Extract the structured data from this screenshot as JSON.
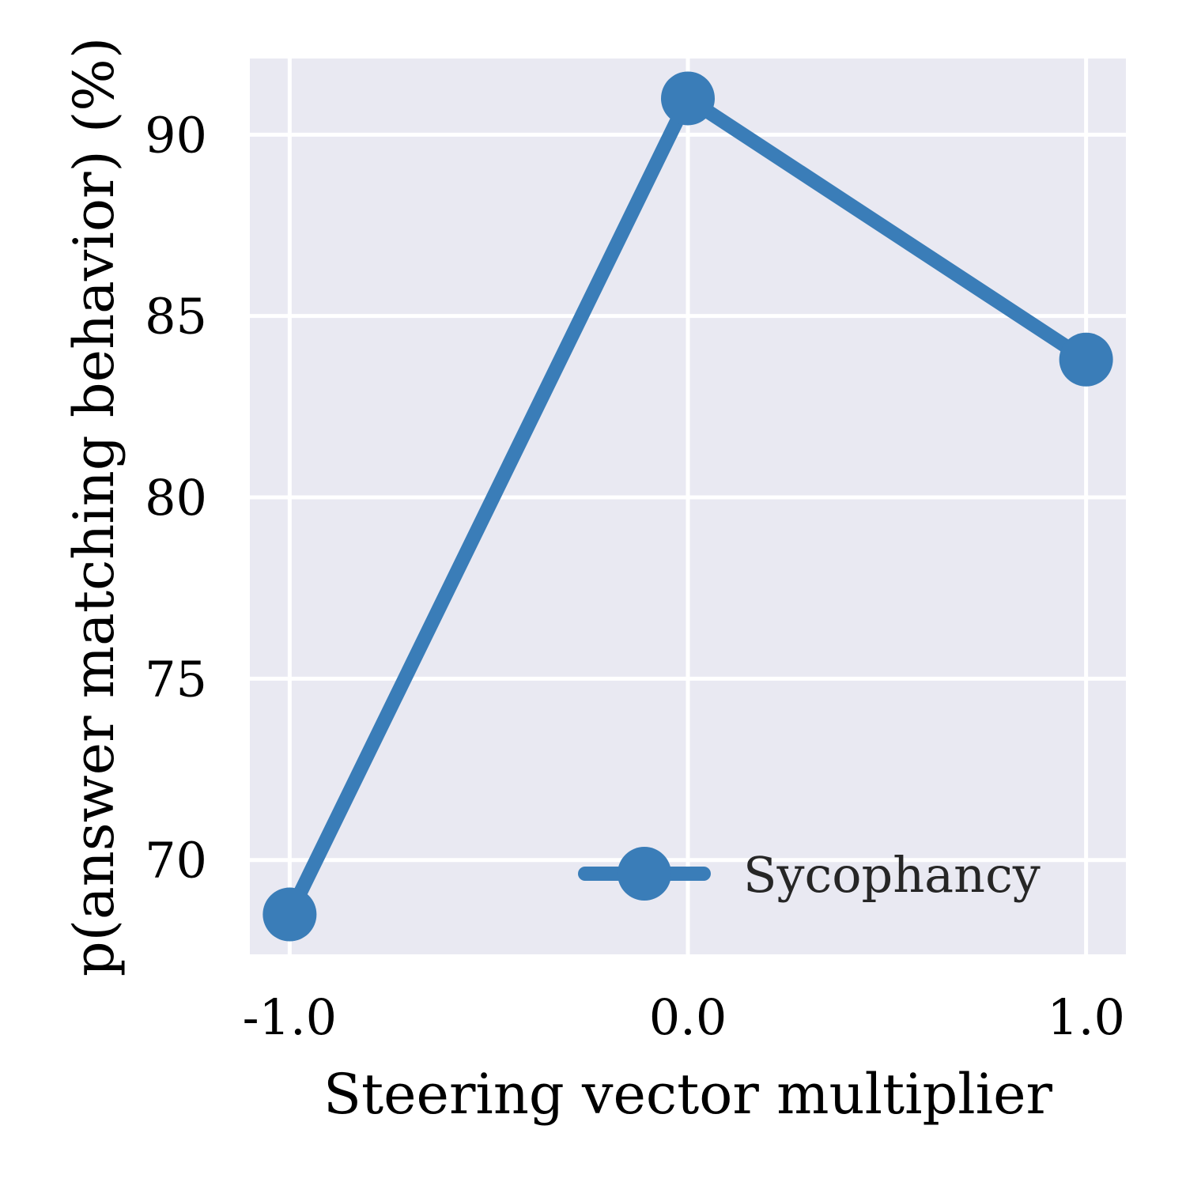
{
  "chart_data": {
    "type": "line",
    "title": "",
    "xlabel": "Steering vector multiplier",
    "ylabel": "p(answer matching behavior) (%)",
    "x": [
      -1.0,
      0.0,
      1.0
    ],
    "x_tick_labels": [
      "-1.0",
      "0.0",
      "1.0"
    ],
    "y_ticks": [
      70,
      75,
      80,
      85,
      90
    ],
    "y_tick_labels": [
      "70",
      "75",
      "80",
      "85",
      "90"
    ],
    "xlim": [
      -1.1,
      1.1
    ],
    "ylim": [
      67.4,
      92.1
    ],
    "grid": true,
    "legend_position": "lower-right",
    "series": [
      {
        "name": "Sycophancy",
        "color": "#3a7db8",
        "marker": "circle",
        "values": [
          68.5,
          91.0,
          83.8
        ]
      }
    ]
  }
}
